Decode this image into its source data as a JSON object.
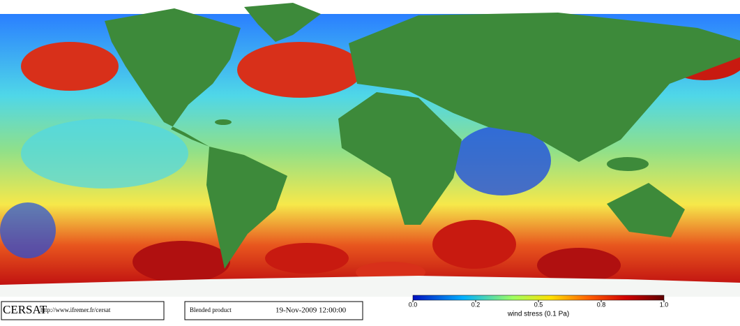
{
  "footer": {
    "logo": "CERSAT",
    "url": "http://www.ifremer.fr/cersat",
    "product": "Blended product",
    "date": "19-Nov-2009 12:00:00"
  },
  "colorbar": {
    "title": "wind stress (0.1 Pa)",
    "ticks": [
      {
        "value": 0,
        "label": "0.0"
      },
      0.2,
      0.5,
      0.8,
      {
        "value": 1,
        "label": "1.0"
      }
    ]
  }
}
